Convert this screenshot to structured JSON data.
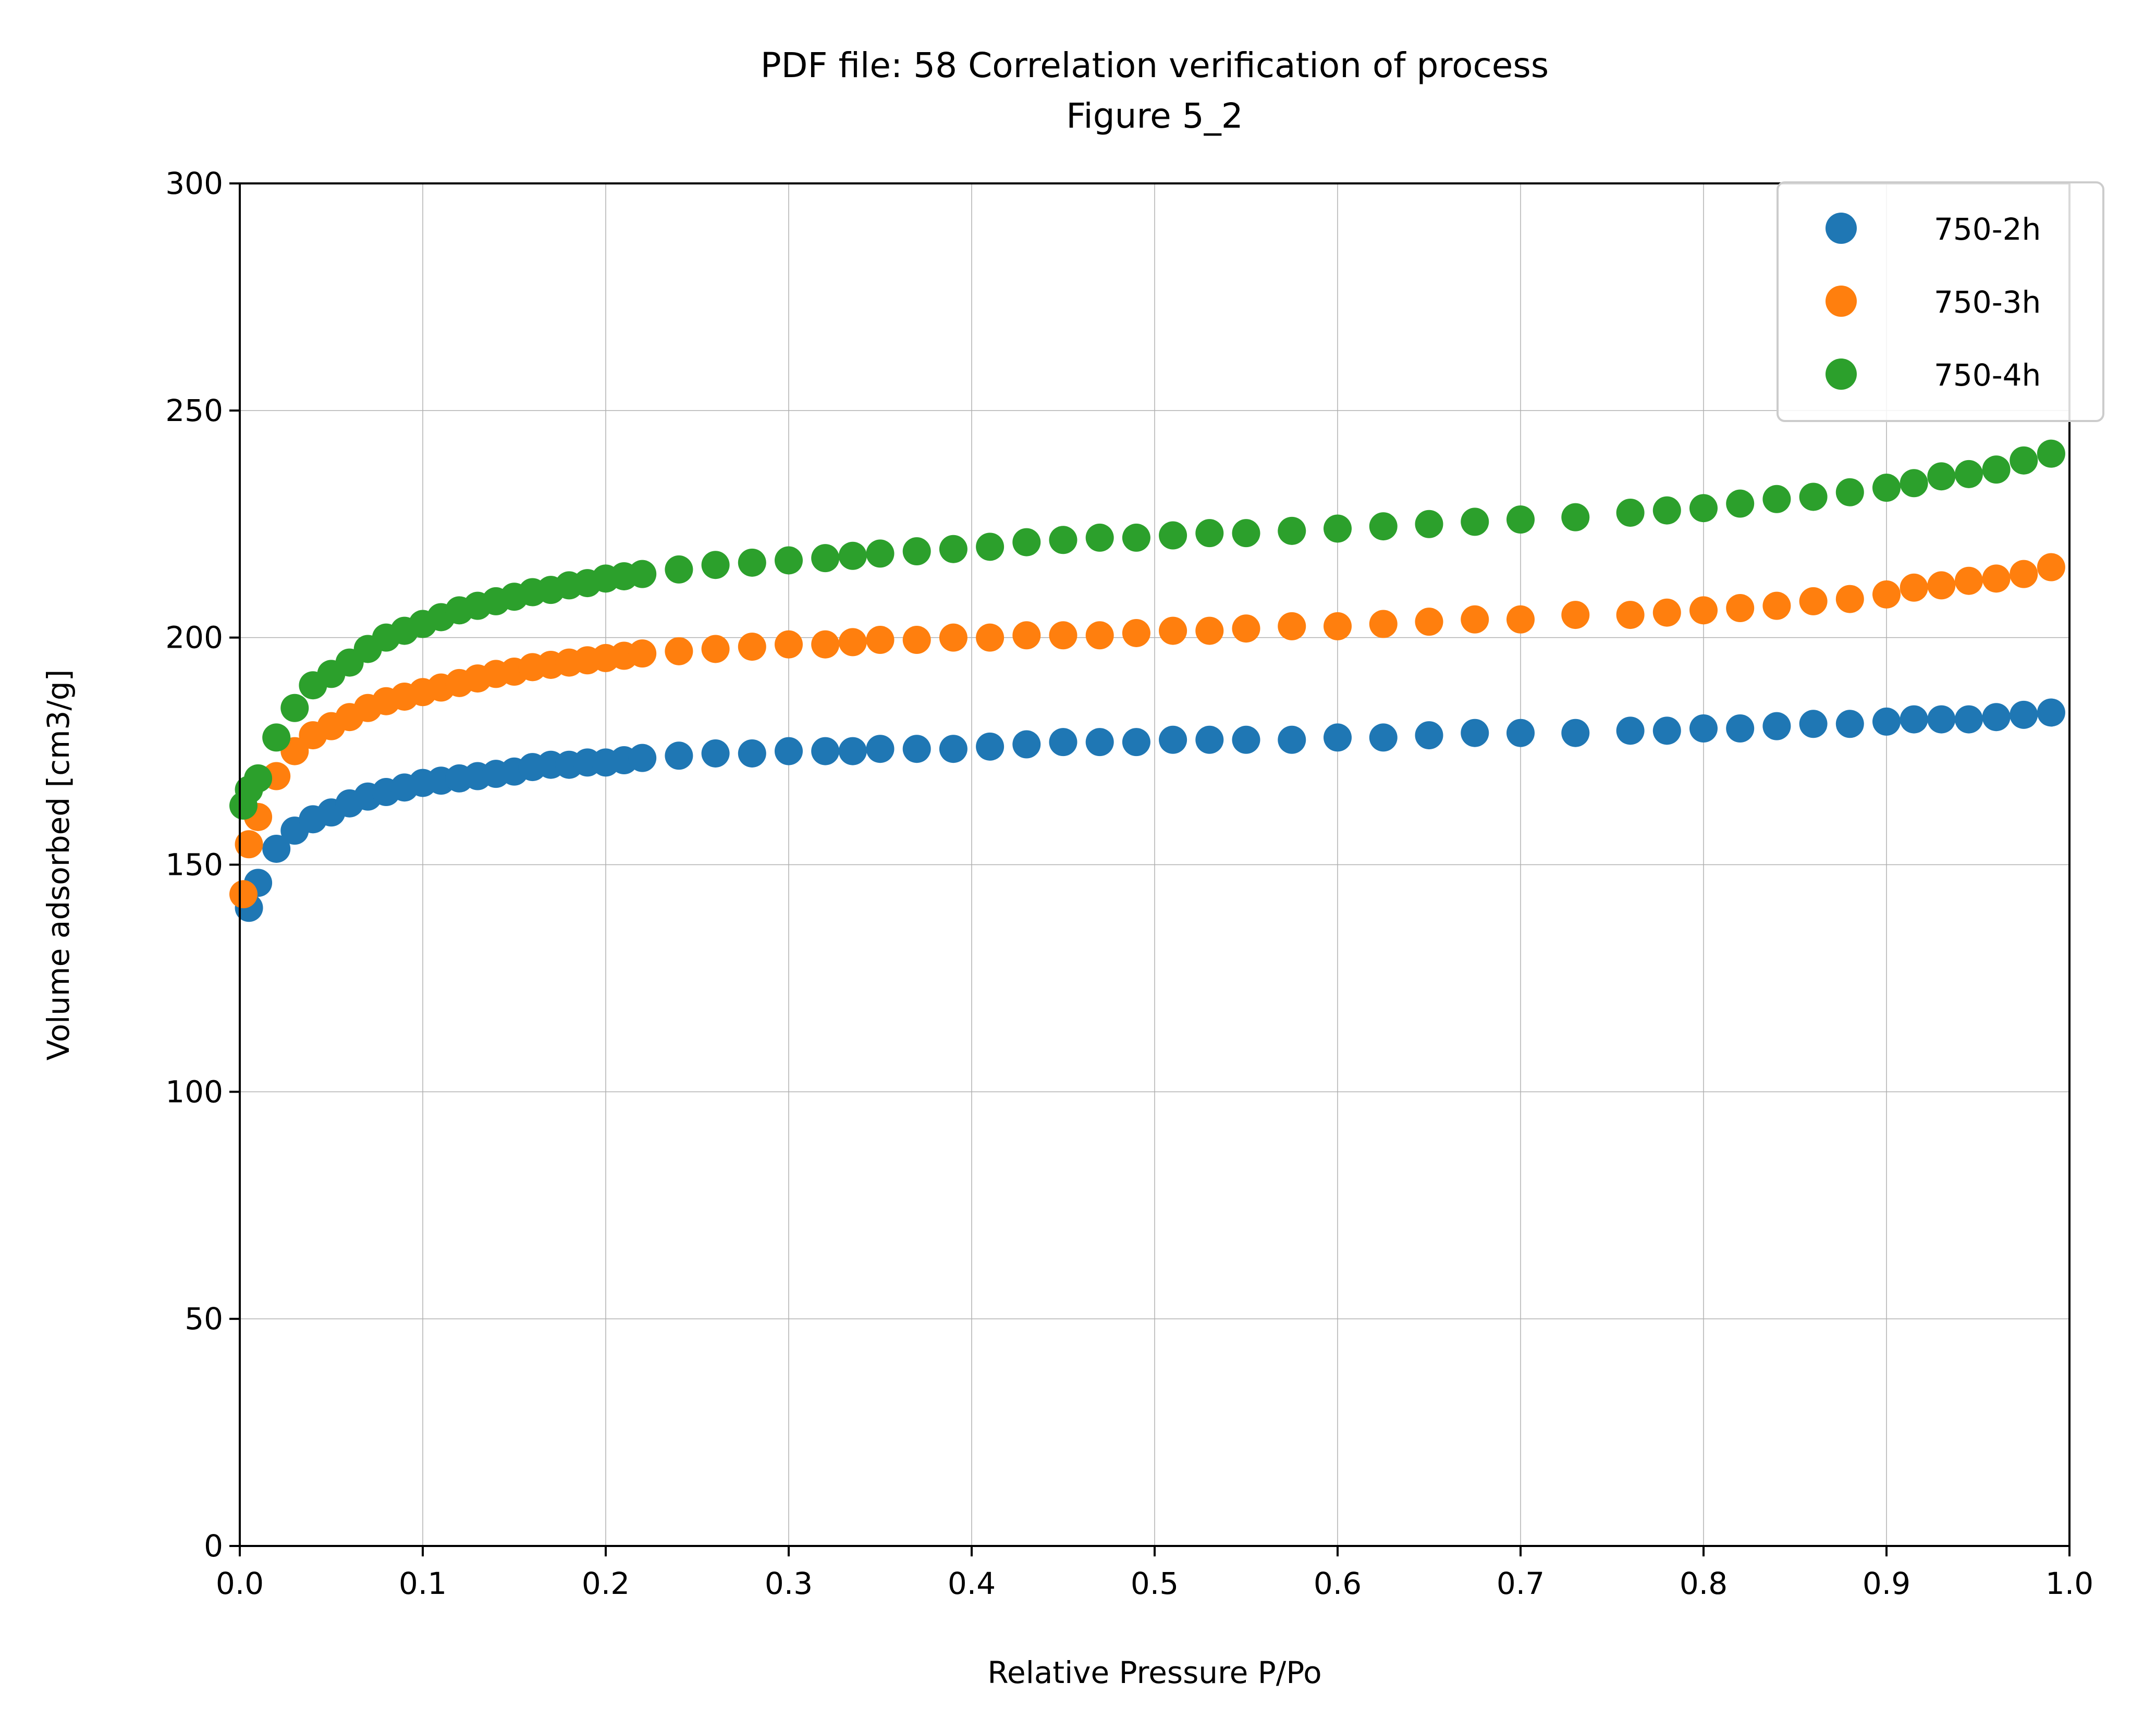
{
  "chart_data": {
    "type": "scatter",
    "title_line1": "PDF file: 58 Correlation verification of process",
    "title_line2": "Figure 5_2",
    "xlabel": "Relative Pressure P/Po",
    "ylabel": "Volume adsorbed [cm3/g]",
    "xlim": [
      0,
      1
    ],
    "ylim": [
      0,
      300
    ],
    "x_ticks": [
      "0.0",
      "0.1",
      "0.2",
      "0.3",
      "0.4",
      "0.5",
      "0.6",
      "0.7",
      "0.8",
      "0.9",
      "1.0"
    ],
    "y_ticks": [
      "0",
      "50",
      "100",
      "150",
      "200",
      "250",
      "300"
    ],
    "grid": true,
    "legend_position": "top-right",
    "x": [
      0.005,
      0.01,
      0.02,
      0.03,
      0.04,
      0.05,
      0.06,
      0.07,
      0.08,
      0.09,
      0.1,
      0.11,
      0.12,
      0.13,
      0.14,
      0.15,
      0.16,
      0.17,
      0.18,
      0.19,
      0.2,
      0.21,
      0.22,
      0.24,
      0.26,
      0.28,
      0.3,
      0.32,
      0.335,
      0.35,
      0.37,
      0.39,
      0.41,
      0.43,
      0.45,
      0.47,
      0.49,
      0.51,
      0.53,
      0.55,
      0.575,
      0.6,
      0.625,
      0.65,
      0.675,
      0.7,
      0.73,
      0.76,
      0.78,
      0.8,
      0.82,
      0.84,
      0.86,
      0.88,
      0.9,
      0.915,
      0.93,
      0.945,
      0.96,
      0.975,
      0.99
    ],
    "series": [
      {
        "name": "750-2h",
        "color": "#1f77b4",
        "x": [
          0.005,
          0.01,
          0.02,
          0.03,
          0.04,
          0.05,
          0.06,
          0.07,
          0.08,
          0.09,
          0.1,
          0.11,
          0.12,
          0.13,
          0.14,
          0.15,
          0.16,
          0.17,
          0.18,
          0.19,
          0.2,
          0.21,
          0.22,
          0.24,
          0.26,
          0.28,
          0.3,
          0.32,
          0.335,
          0.35,
          0.37,
          0.39,
          0.41,
          0.43,
          0.45,
          0.47,
          0.49,
          0.51,
          0.53,
          0.55,
          0.575,
          0.6,
          0.625,
          0.65,
          0.675,
          0.7,
          0.73,
          0.76,
          0.78,
          0.8,
          0.82,
          0.84,
          0.86,
          0.88,
          0.9,
          0.915,
          0.93,
          0.945,
          0.96,
          0.975,
          0.99
        ],
        "values": [
          140.5,
          146,
          153.5,
          157.5,
          160,
          161.5,
          163.5,
          165,
          166,
          167,
          168,
          168.5,
          169,
          169.5,
          170,
          170.5,
          171.5,
          172,
          172,
          172.5,
          172.5,
          173,
          173.5,
          174,
          174.5,
          174.5,
          175,
          175,
          175,
          175.5,
          175.5,
          175.5,
          176,
          176.5,
          177,
          177,
          177,
          177.5,
          177.5,
          177.5,
          177.5,
          178,
          178,
          178.5,
          179,
          179,
          179,
          179.5,
          179.5,
          180,
          180,
          180.5,
          181,
          181,
          181.5,
          182,
          182,
          182,
          182.5,
          183,
          183.5
        ]
      },
      {
        "name": "750-3h",
        "color": "#ff7f0e",
        "x": [
          0.002,
          0.005,
          0.01,
          0.02,
          0.03,
          0.04,
          0.05,
          0.06,
          0.07,
          0.08,
          0.09,
          0.1,
          0.11,
          0.12,
          0.13,
          0.14,
          0.15,
          0.16,
          0.17,
          0.18,
          0.19,
          0.2,
          0.21,
          0.22,
          0.24,
          0.26,
          0.28,
          0.3,
          0.32,
          0.335,
          0.35,
          0.37,
          0.39,
          0.41,
          0.43,
          0.45,
          0.47,
          0.49,
          0.51,
          0.53,
          0.55,
          0.575,
          0.6,
          0.625,
          0.65,
          0.675,
          0.7,
          0.73,
          0.76,
          0.78,
          0.8,
          0.82,
          0.84,
          0.86,
          0.88,
          0.9,
          0.915,
          0.93,
          0.945,
          0.96,
          0.975,
          0.99
        ],
        "values": [
          143.5,
          154.5,
          160.5,
          169.5,
          175,
          178.5,
          180.5,
          182.5,
          184.5,
          186,
          187,
          188,
          189,
          190,
          191,
          192,
          192.5,
          193.5,
          194,
          194.5,
          195,
          195.5,
          196,
          196.5,
          197,
          197.5,
          198,
          198.5,
          198.5,
          199,
          199.5,
          199.5,
          200,
          200,
          200.5,
          200.5,
          200.5,
          201,
          201.5,
          201.5,
          202,
          202.5,
          202.5,
          203,
          203.5,
          204,
          204,
          205,
          205,
          205.5,
          206,
          206.5,
          207,
          208,
          208.5,
          209.5,
          211,
          211.5,
          212.5,
          213,
          214,
          215.5
        ]
      },
      {
        "name": "750-4h",
        "color": "#2ca02c",
        "x": [
          0.002,
          0.005,
          0.01,
          0.02,
          0.03,
          0.04,
          0.05,
          0.06,
          0.07,
          0.08,
          0.09,
          0.1,
          0.11,
          0.12,
          0.13,
          0.14,
          0.15,
          0.16,
          0.17,
          0.18,
          0.19,
          0.2,
          0.21,
          0.22,
          0.24,
          0.26,
          0.28,
          0.3,
          0.32,
          0.335,
          0.35,
          0.37,
          0.39,
          0.41,
          0.43,
          0.45,
          0.47,
          0.49,
          0.51,
          0.53,
          0.55,
          0.575,
          0.6,
          0.625,
          0.65,
          0.675,
          0.7,
          0.73,
          0.76,
          0.78,
          0.8,
          0.82,
          0.84,
          0.86,
          0.88,
          0.9,
          0.915,
          0.93,
          0.945,
          0.96,
          0.975,
          0.99
        ],
        "values": [
          163,
          166.5,
          169,
          178,
          184.5,
          189.5,
          192,
          194.5,
          197.5,
          200,
          201.5,
          203,
          204.5,
          206,
          207,
          208,
          209,
          210,
          210.5,
          211.5,
          212,
          213,
          213.5,
          214,
          215,
          216,
          216.5,
          217,
          217.5,
          218,
          218.5,
          219,
          219.5,
          220,
          221,
          221.5,
          222,
          222,
          222.5,
          223,
          223,
          223.5,
          224,
          224.5,
          225,
          225.5,
          226,
          226.5,
          227.5,
          228,
          228.5,
          229.5,
          230.5,
          231,
          232,
          233,
          234,
          235.5,
          236,
          237,
          239,
          240.5
        ]
      }
    ]
  }
}
